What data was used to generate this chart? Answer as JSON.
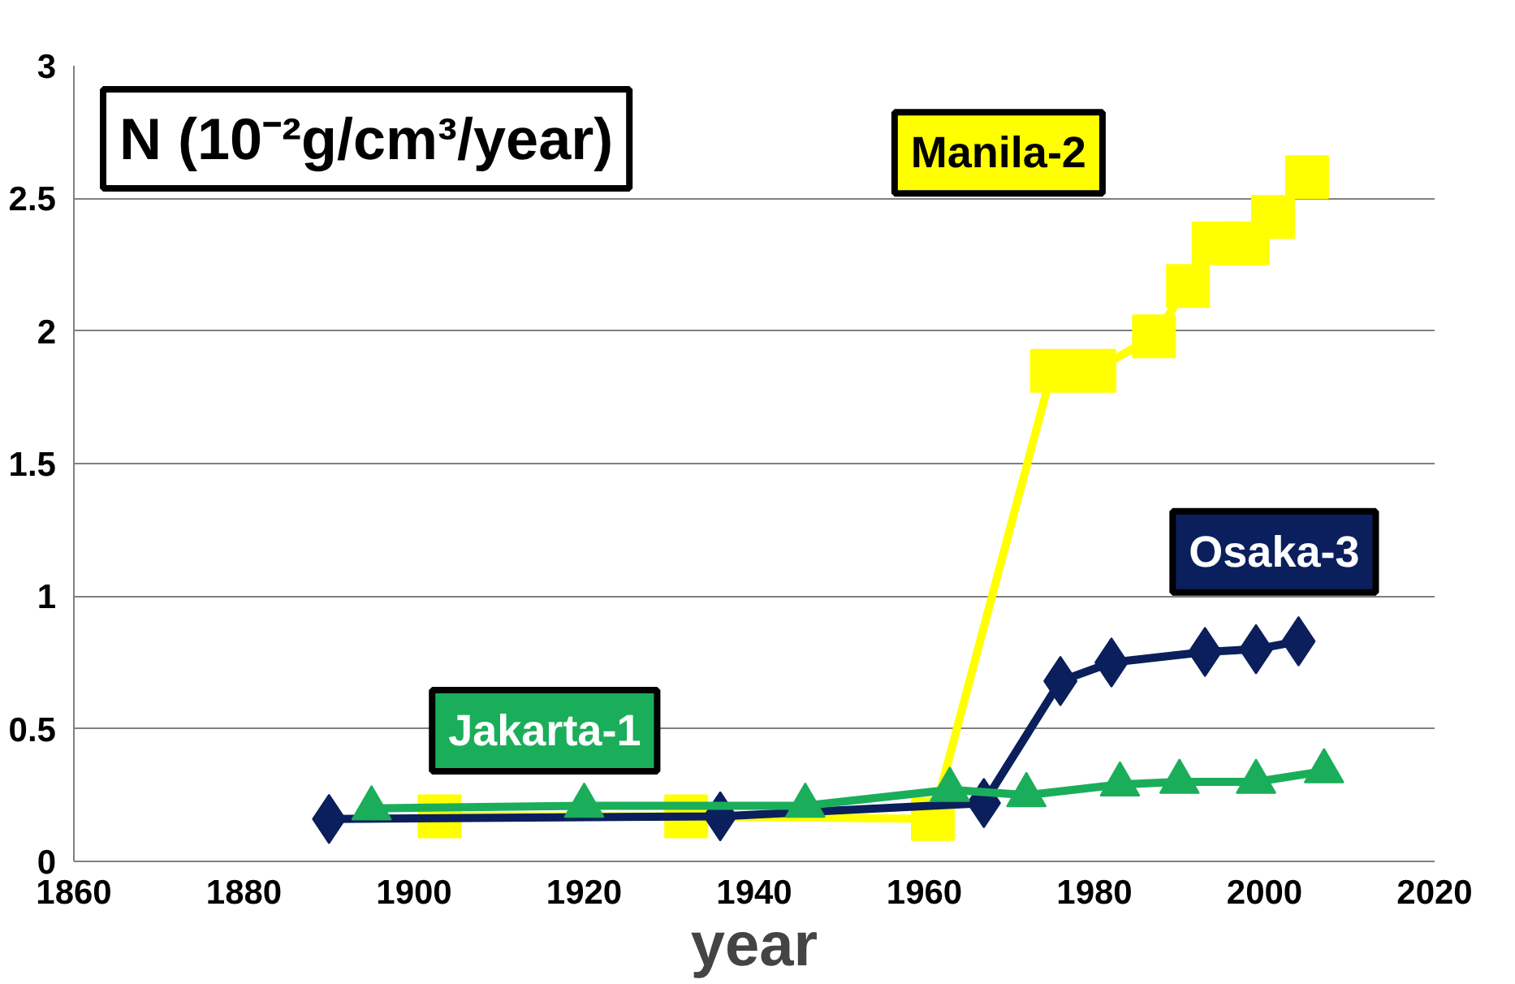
{
  "chart_data": {
    "type": "line",
    "title": "N (10⁻²g/cm³/year)",
    "xlabel": "year",
    "xlim": [
      1860,
      2020
    ],
    "xticks": [
      1860,
      1880,
      1900,
      1920,
      1940,
      1960,
      1980,
      2000,
      2020
    ],
    "ylim": [
      0,
      3
    ],
    "yticks": [
      0,
      0.5,
      1,
      1.5,
      2,
      2.5,
      3
    ],
    "grid": "y",
    "line_style": "solid",
    "series": [
      {
        "name": "Manila-2",
        "color": "#ffff00",
        "marker": "square",
        "x": [
          1903,
          1932,
          1961,
          1975,
          1980,
          1987,
          1991,
          1994,
          1998,
          2001,
          2005
        ],
        "values": [
          0.17,
          0.17,
          0.16,
          1.85,
          1.85,
          1.98,
          2.17,
          2.33,
          2.33,
          2.43,
          2.58
        ]
      },
      {
        "name": "Osaka-3",
        "color": "#0a1f5c",
        "marker": "diamond",
        "x": [
          1890,
          1936,
          1967,
          1976,
          1982,
          1993,
          1999,
          2004
        ],
        "values": [
          0.16,
          0.17,
          0.22,
          0.68,
          0.75,
          0.79,
          0.8,
          0.83
        ]
      },
      {
        "name": "Jakarta-1",
        "color": "#1aae5a",
        "marker": "triangle",
        "x": [
          1895,
          1920,
          1946,
          1963,
          1972,
          1983,
          1990,
          1999,
          2007
        ],
        "values": [
          0.2,
          0.21,
          0.21,
          0.27,
          0.25,
          0.29,
          0.3,
          0.3,
          0.34
        ]
      }
    ]
  }
}
